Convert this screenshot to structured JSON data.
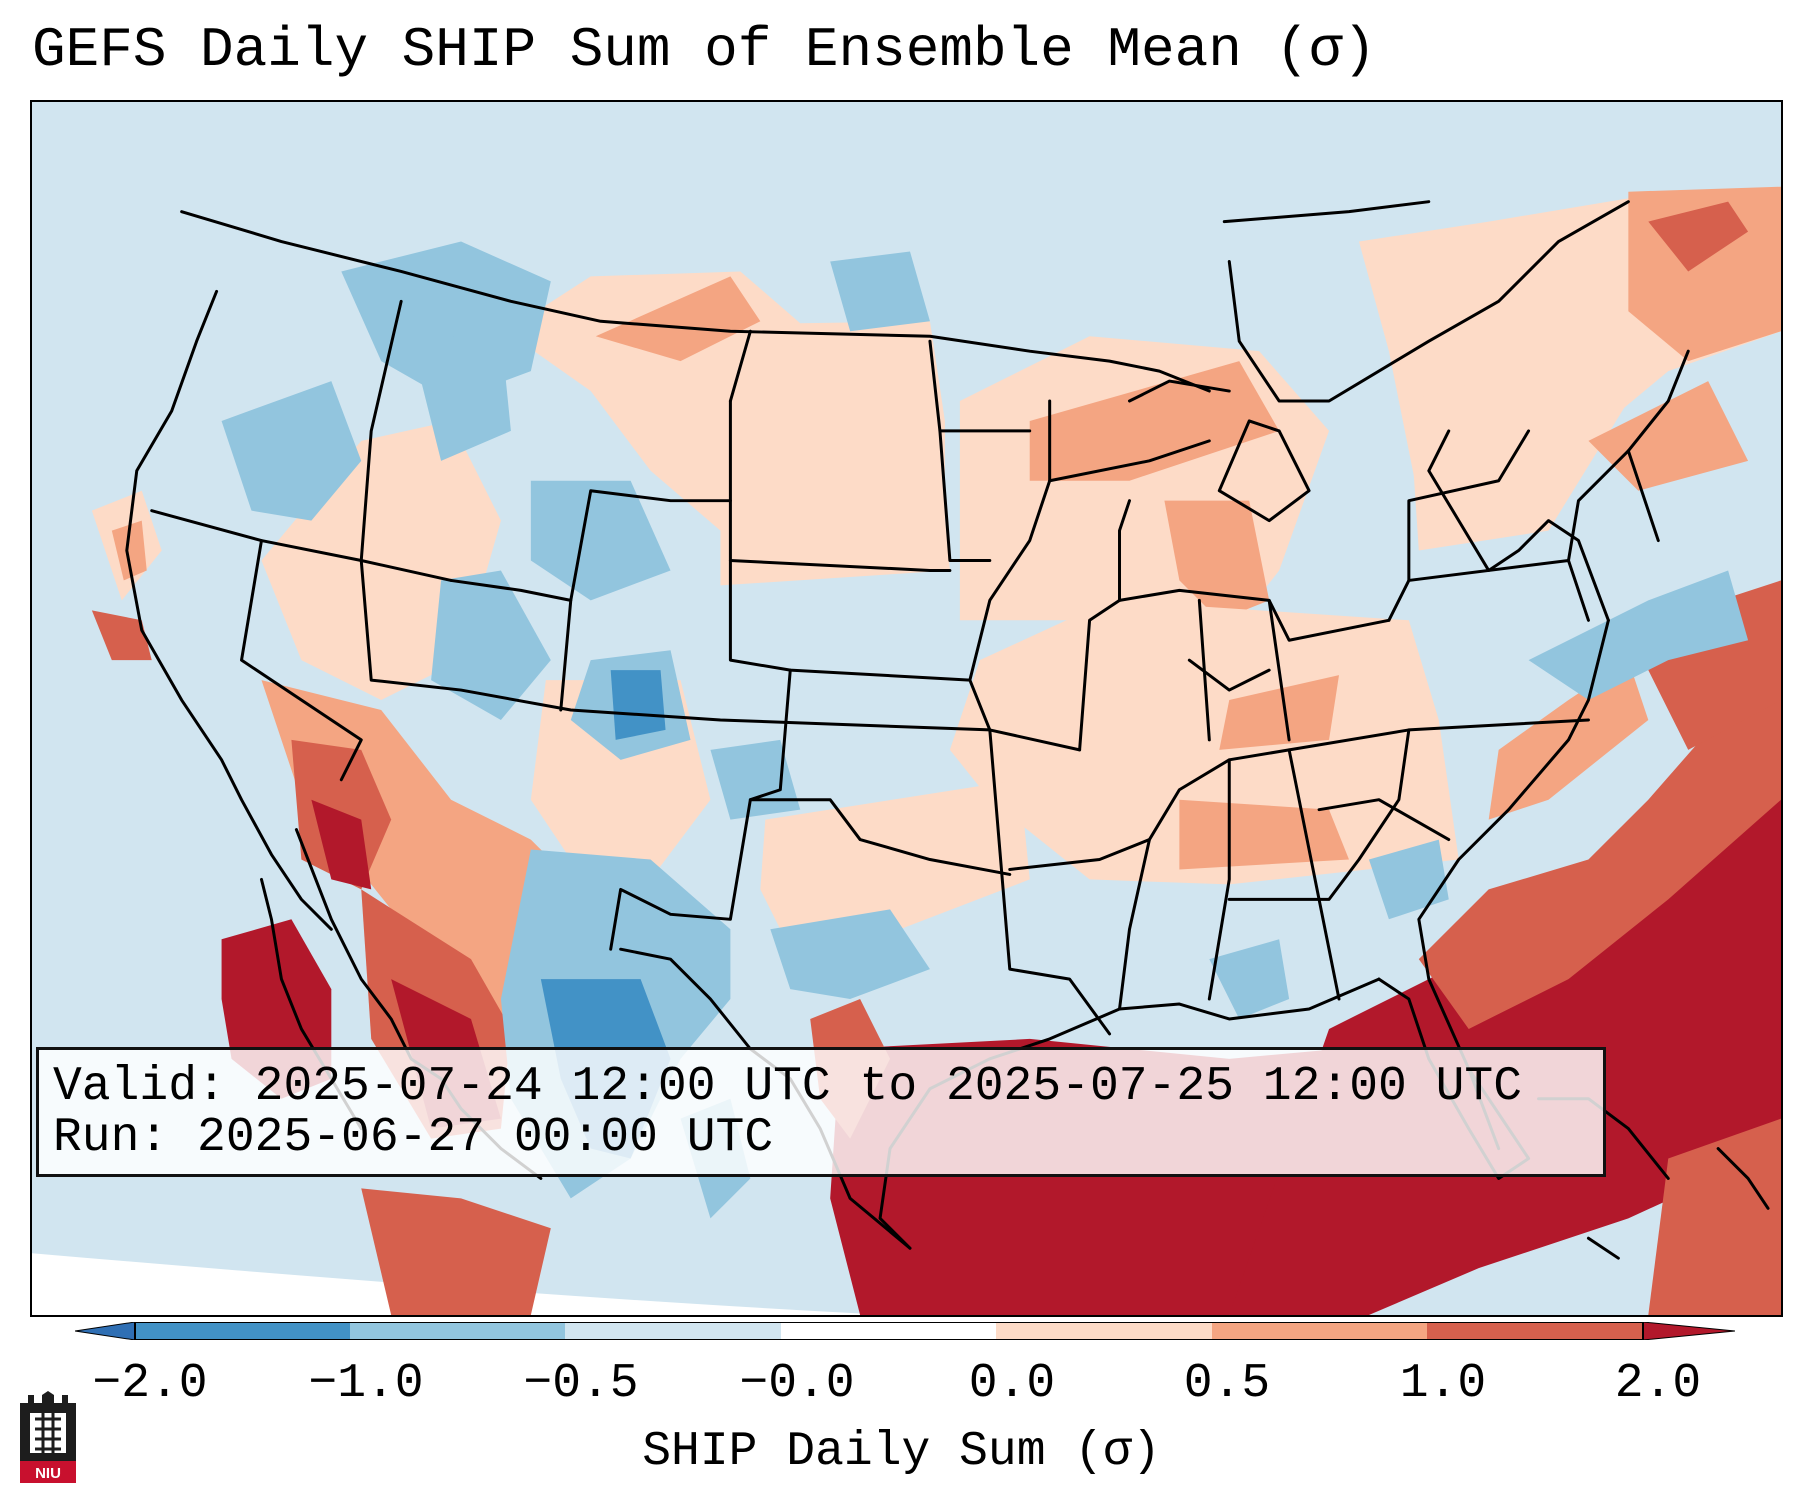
{
  "title": "GEFS Daily SHIP Sum of Ensemble Mean (σ)",
  "info": {
    "valid": "Valid: 2025-07-24 12:00 UTC to 2025-07-25 12:00 UTC",
    "run": "Run:   2025-06-27 00:00 UTC"
  },
  "colorbar": {
    "label": "SHIP Daily Sum (σ)",
    "tick_labels": [
      "−2.0",
      "−1.0",
      "−0.5",
      "−0.0",
      "0.0",
      "0.5",
      "1.0",
      "2.0"
    ],
    "colors": [
      "#2f6fb4",
      "#4292c6",
      "#92c5de",
      "#d1e5f0",
      "#ffffff",
      "#fddbc7",
      "#f4a582",
      "#d6604d",
      "#b2182b"
    ]
  },
  "map": {
    "projection": "Lambert Conformal",
    "region": "Continental United States",
    "anomaly_summary": [
      {
        "region": "Gulf of Mexico",
        "value": "≥ 1.0",
        "color": "#b2182b"
      },
      {
        "region": "Western Atlantic",
        "value": "1.0 to 2.0",
        "color": "#d6604d"
      },
      {
        "region": "Texas / New Mexico",
        "value": "−1.0 to −0.5",
        "color": "#92c5de"
      },
      {
        "region": "Northern Rockies",
        "value": "−1.0 to −0.5",
        "color": "#92c5de"
      },
      {
        "region": "Great Lakes / Midwest",
        "value": "0.5 to 1.0",
        "color": "#f4a582"
      }
    ]
  },
  "logo": {
    "text": "NIU",
    "colors": {
      "top": "#1d1d1d",
      "bottom": "#c8102e"
    }
  }
}
